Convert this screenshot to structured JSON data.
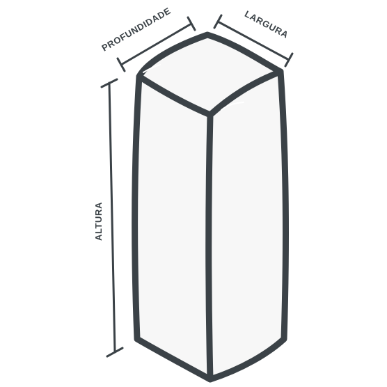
{
  "labels": {
    "depth": "PROFUNDIDADE",
    "width": "LARGURA",
    "height": "ALTURA"
  },
  "colors": {
    "outline": "#3b4247",
    "fill": "#f7f7f7",
    "text": "#3b4247",
    "background": "#ffffff"
  },
  "icons": {
    "shape": "rectangular-box-icon"
  }
}
